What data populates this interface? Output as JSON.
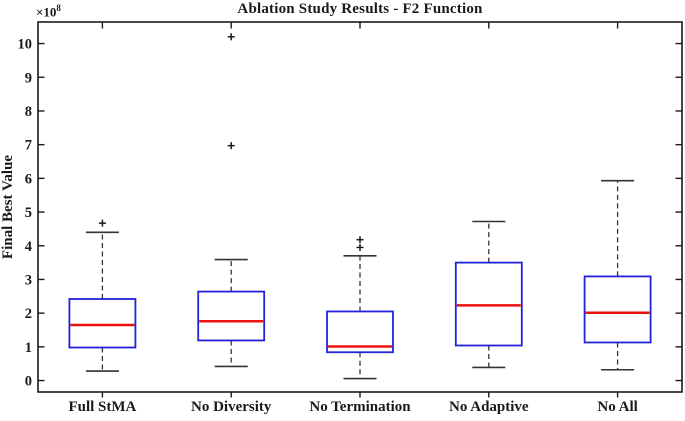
{
  "figure": {
    "title": "Ablation Study Results - F2 Function",
    "y_axis_label": "Final Best Value",
    "y_multiplier_base": "×10",
    "y_multiplier_exponent": "8"
  },
  "chart_data": {
    "type": "boxplot",
    "title": "Ablation Study Results - F2 Function",
    "xlabel": "",
    "ylabel": "Final Best Value",
    "y_unit_multiplier": "1e8",
    "ylim": [
      -0.34,
      10.64
    ],
    "yticks": [
      0,
      1,
      2,
      3,
      4,
      5,
      6,
      7,
      8,
      9,
      10
    ],
    "grid": false,
    "legend": false,
    "categories": [
      "Full StMA",
      "No Diversity",
      "No Termination",
      "No Adaptive",
      "No All"
    ],
    "series": [
      {
        "name": "Full StMA",
        "whisker_low": 0.28,
        "q1": 0.98,
        "median": 1.65,
        "q3": 2.42,
        "whisker_high": 4.4,
        "outliers": [
          4.67
        ]
      },
      {
        "name": "No Diversity",
        "whisker_low": 0.42,
        "q1": 1.19,
        "median": 1.76,
        "q3": 2.64,
        "whisker_high": 3.59,
        "outliers": [
          6.97,
          10.2
        ]
      },
      {
        "name": "No Termination",
        "whisker_low": 0.06,
        "q1": 0.84,
        "median": 1.01,
        "q3": 2.05,
        "whisker_high": 3.7,
        "outliers": [
          3.95,
          4.18
        ]
      },
      {
        "name": "No Adaptive",
        "whisker_low": 0.39,
        "q1": 1.04,
        "median": 2.23,
        "q3": 3.5,
        "whisker_high": 4.72,
        "outliers": []
      },
      {
        "name": "No All",
        "whisker_low": 0.32,
        "q1": 1.13,
        "median": 2.01,
        "q3": 3.09,
        "whisker_high": 5.93,
        "outliers": []
      }
    ],
    "colors": {
      "box_edge": "#2222dd",
      "median": "#ee1111",
      "whisker": "#333333",
      "outlier_marker": "#1a1a1a",
      "axis_frame": "#1a1a1a",
      "background": "#ffffff"
    }
  }
}
